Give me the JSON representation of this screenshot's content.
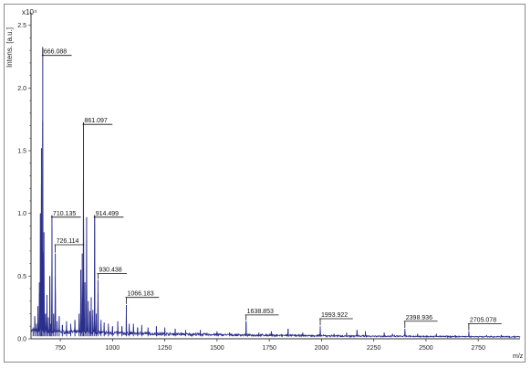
{
  "chart_data": {
    "type": "line",
    "title": "",
    "ylabel": "Intens. [a.u.]",
    "yscale_label": "x10⁴",
    "xlabel": "m/z",
    "xlim": [
      610,
      2950
    ],
    "ylim": [
      0,
      2.6
    ],
    "xticks": [
      "750",
      "1000",
      "1250",
      "1500",
      "1750",
      "2000",
      "2250",
      "2500",
      "2750"
    ],
    "yticks": [
      "0.0",
      "0.5",
      "1.0",
      "1.5",
      "2.0",
      "2.5"
    ],
    "line_color": "#2b2f8c",
    "peaks": [
      {
        "x": 620,
        "y": 0.09
      },
      {
        "x": 628,
        "y": 0.18
      },
      {
        "x": 636,
        "y": 0.12
      },
      {
        "x": 643,
        "y": 0.26
      },
      {
        "x": 650,
        "y": 0.45
      },
      {
        "x": 655,
        "y": 1.0
      },
      {
        "x": 660,
        "y": 1.52
      },
      {
        "x": 666.088,
        "y": 2.32
      },
      {
        "x": 672,
        "y": 0.85
      },
      {
        "x": 679,
        "y": 0.2
      },
      {
        "x": 686,
        "y": 0.35
      },
      {
        "x": 693,
        "y": 0.17
      },
      {
        "x": 700,
        "y": 0.5
      },
      {
        "x": 705,
        "y": 0.12
      },
      {
        "x": 710.135,
        "y": 0.98
      },
      {
        "x": 718,
        "y": 0.2
      },
      {
        "x": 726.114,
        "y": 0.68
      },
      {
        "x": 735,
        "y": 0.14
      },
      {
        "x": 745,
        "y": 0.18
      },
      {
        "x": 760,
        "y": 0.11
      },
      {
        "x": 780,
        "y": 0.14
      },
      {
        "x": 800,
        "y": 0.12
      },
      {
        "x": 820,
        "y": 0.15
      },
      {
        "x": 840,
        "y": 0.2
      },
      {
        "x": 848,
        "y": 0.55
      },
      {
        "x": 855,
        "y": 0.68
      },
      {
        "x": 861.097,
        "y": 1.72
      },
      {
        "x": 868,
        "y": 0.45
      },
      {
        "x": 876,
        "y": 0.97
      },
      {
        "x": 884,
        "y": 0.3
      },
      {
        "x": 892,
        "y": 0.22
      },
      {
        "x": 898,
        "y": 0.33
      },
      {
        "x": 906,
        "y": 0.23
      },
      {
        "x": 914.499,
        "y": 0.98
      },
      {
        "x": 922,
        "y": 0.2
      },
      {
        "x": 930.438,
        "y": 0.47
      },
      {
        "x": 945,
        "y": 0.15
      },
      {
        "x": 960,
        "y": 0.13
      },
      {
        "x": 980,
        "y": 0.12
      },
      {
        "x": 1000,
        "y": 0.1
      },
      {
        "x": 1025,
        "y": 0.14
      },
      {
        "x": 1045,
        "y": 0.1
      },
      {
        "x": 1066.183,
        "y": 0.27
      },
      {
        "x": 1080,
        "y": 0.12
      },
      {
        "x": 1100,
        "y": 0.12
      },
      {
        "x": 1120,
        "y": 0.09
      },
      {
        "x": 1140,
        "y": 0.11
      },
      {
        "x": 1170,
        "y": 0.09
      },
      {
        "x": 1210,
        "y": 0.1
      },
      {
        "x": 1250,
        "y": 0.09
      },
      {
        "x": 1300,
        "y": 0.08
      },
      {
        "x": 1350,
        "y": 0.07
      },
      {
        "x": 1420,
        "y": 0.07
      },
      {
        "x": 1500,
        "y": 0.06
      },
      {
        "x": 1560,
        "y": 0.05
      },
      {
        "x": 1638.853,
        "y": 0.14
      },
      {
        "x": 1700,
        "y": 0.05
      },
      {
        "x": 1760,
        "y": 0.06
      },
      {
        "x": 1840,
        "y": 0.08
      },
      {
        "x": 1910,
        "y": 0.05
      },
      {
        "x": 1993.922,
        "y": 0.1
      },
      {
        "x": 2060,
        "y": 0.04
      },
      {
        "x": 2120,
        "y": 0.05
      },
      {
        "x": 2170,
        "y": 0.07
      },
      {
        "x": 2210,
        "y": 0.06
      },
      {
        "x": 2300,
        "y": 0.05
      },
      {
        "x": 2340,
        "y": 0.04
      },
      {
        "x": 2398.936,
        "y": 0.08
      },
      {
        "x": 2460,
        "y": 0.04
      },
      {
        "x": 2550,
        "y": 0.04
      },
      {
        "x": 2640,
        "y": 0.03
      },
      {
        "x": 2705.078,
        "y": 0.06
      },
      {
        "x": 2790,
        "y": 0.03
      },
      {
        "x": 2860,
        "y": 0.03
      },
      {
        "x": 2920,
        "y": 0.02
      }
    ],
    "peak_labels": [
      {
        "text": "666.088",
        "x": 666.088,
        "y": 2.32,
        "label_y": 2.26
      },
      {
        "text": "710.135",
        "x": 710.135,
        "y": 0.98,
        "label_y": 0.97
      },
      {
        "text": "726.114",
        "x": 726.114,
        "y": 0.68,
        "label_y": 0.75
      },
      {
        "text": "861.097",
        "x": 861.097,
        "y": 1.72,
        "label_y": 1.71
      },
      {
        "text": "914.499",
        "x": 914.499,
        "y": 0.98,
        "label_y": 0.97
      },
      {
        "text": "930.438",
        "x": 930.438,
        "y": 0.47,
        "label_y": 0.52
      },
      {
        "text": "1066.183",
        "x": 1066.183,
        "y": 0.27,
        "label_y": 0.33
      },
      {
        "text": "1638.853",
        "x": 1638.853,
        "y": 0.14,
        "label_y": 0.19
      },
      {
        "text": "1993.922",
        "x": 1993.922,
        "y": 0.1,
        "label_y": 0.16
      },
      {
        "text": "2398.936",
        "x": 2398.936,
        "y": 0.08,
        "label_y": 0.14
      },
      {
        "text": "2705.078",
        "x": 2705.078,
        "y": 0.06,
        "label_y": 0.12
      }
    ]
  }
}
